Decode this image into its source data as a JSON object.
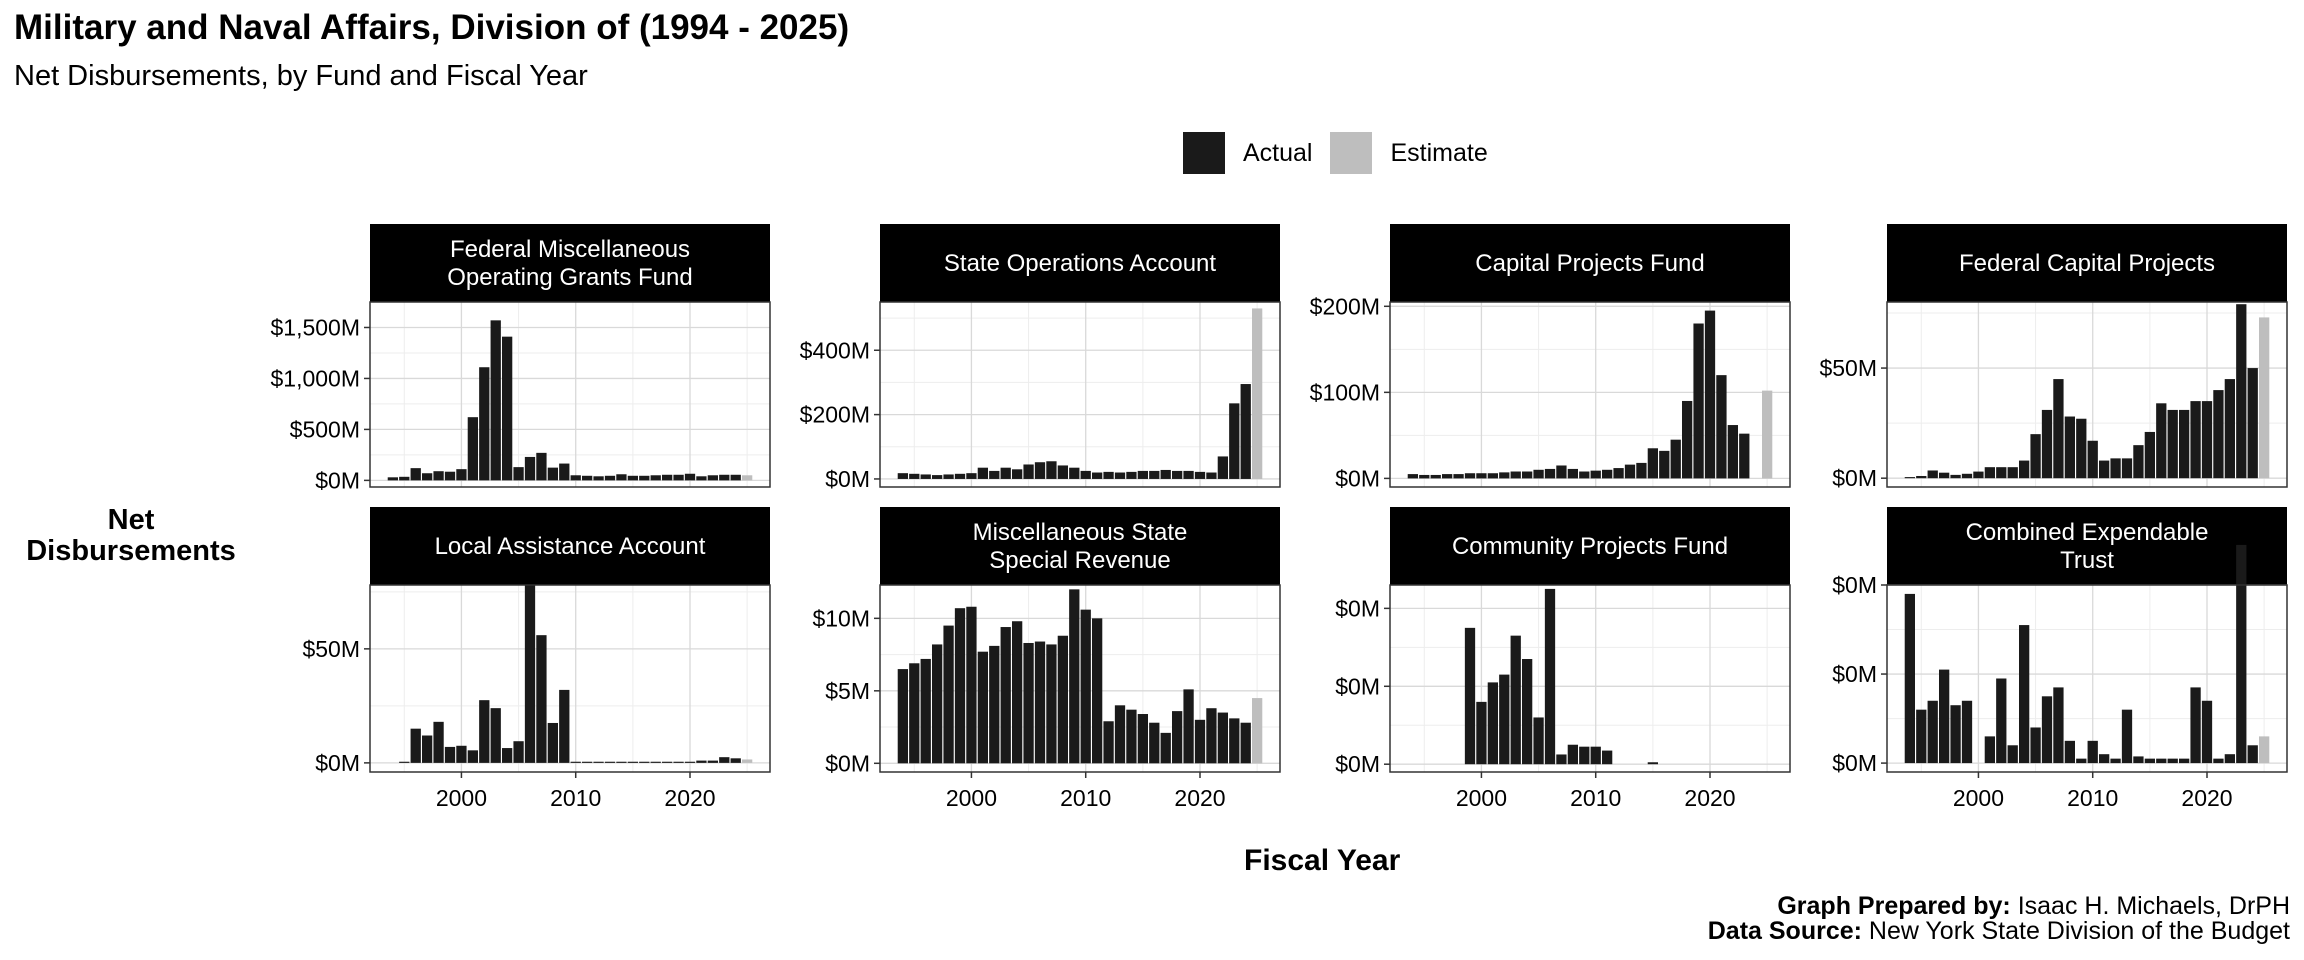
{
  "title": "Military and Naval Affairs, Division of (1994 - 2025)",
  "subtitle": "Net Disbursements, by Fund and Fiscal Year",
  "y_axis_title": "Net Disbursements",
  "x_axis_title": "Fiscal Year",
  "caption": {
    "prepared_label": "Graph Prepared by:",
    "prepared_value": "Isaac H. Michaels, DrPH",
    "source_label": "Data Source:",
    "source_value": "New York State Division of the Budget"
  },
  "legend": {
    "actual_label": "Actual",
    "estimate_label": "Estimate"
  },
  "colors": {
    "actual": "#1a1a1a",
    "estimate": "#bebebe",
    "strip": "#000000",
    "grid_major": "#d9d9d9",
    "grid_minor": "#ededed"
  },
  "chart_data": {
    "type": "bar",
    "units": "millions of dollars",
    "x": [
      1994,
      1995,
      1996,
      1997,
      1998,
      1999,
      2000,
      2001,
      2002,
      2003,
      2004,
      2005,
      2006,
      2007,
      2008,
      2009,
      2010,
      2011,
      2012,
      2013,
      2014,
      2015,
      2016,
      2017,
      2018,
      2019,
      2020,
      2021,
      2022,
      2023,
      2024,
      2025
    ],
    "estimate_years": [
      2025
    ],
    "xlim": [
      1992,
      2027
    ],
    "x_ticks": [
      2000,
      2010,
      2020
    ],
    "x_tick_labels": [
      "2000",
      "2010",
      "2020"
    ],
    "panels": [
      {
        "title": [
          "Federal Miscellaneous",
          "Operating Grants Fund"
        ],
        "ylim": [
          -65,
          1750
        ],
        "y_ticks": [
          0,
          500,
          1000,
          1500
        ],
        "y_tick_labels": [
          "$0M",
          "$500M",
          "$1,000M",
          "$1,500M"
        ],
        "values": [
          30,
          35,
          120,
          70,
          90,
          85,
          110,
          620,
          1110,
          1570,
          1410,
          130,
          230,
          270,
          125,
          165,
          50,
          45,
          40,
          45,
          60,
          45,
          45,
          50,
          55,
          55,
          65,
          40,
          50,
          55,
          55,
          50
        ]
      },
      {
        "title": [
          "State Operations Account"
        ],
        "ylim": [
          -25,
          550
        ],
        "y_ticks": [
          0,
          200,
          400
        ],
        "y_tick_labels": [
          "$0M",
          "$200M",
          "$400M"
        ],
        "values": [
          18,
          16,
          14,
          12,
          14,
          16,
          18,
          35,
          25,
          35,
          30,
          45,
          52,
          55,
          42,
          35,
          25,
          20,
          22,
          20,
          22,
          25,
          25,
          28,
          25,
          25,
          22,
          20,
          70,
          235,
          295,
          530
        ]
      },
      {
        "title": [
          "Capital Projects Fund"
        ],
        "ylim": [
          -10,
          205
        ],
        "y_ticks": [
          0,
          100,
          200
        ],
        "y_tick_labels": [
          "$0M",
          "$100M",
          "$200M"
        ],
        "values": [
          5,
          4,
          4,
          5,
          5,
          6,
          6,
          6,
          7,
          8,
          8,
          10,
          11,
          15,
          11,
          8,
          9,
          10,
          12,
          16,
          18,
          35,
          32,
          45,
          90,
          180,
          195,
          120,
          62,
          52,
          0,
          102
        ]
      },
      {
        "title": [
          "Federal Capital Projects"
        ],
        "ylim": [
          -4,
          80
        ],
        "y_ticks": [
          0,
          50
        ],
        "y_tick_labels": [
          "$0M",
          "$50M"
        ],
        "values": [
          0.5,
          1,
          3.5,
          2.5,
          1.5,
          2,
          3,
          5,
          5,
          5,
          8,
          20,
          31,
          45,
          28,
          27,
          17,
          8,
          9,
          9,
          15,
          21,
          34,
          31,
          31,
          35,
          35,
          40,
          45,
          79,
          50,
          73
        ]
      },
      {
        "title": [
          "Local Assistance Account"
        ],
        "ylim": [
          -4,
          78
        ],
        "y_ticks": [
          0,
          50
        ],
        "y_tick_labels": [
          "$0M",
          "$50M"
        ],
        "values": [
          0,
          0.5,
          15,
          12,
          18,
          7,
          7.5,
          5.5,
          27.5,
          24,
          6.5,
          9.5,
          78,
          56,
          17.5,
          32,
          0.5,
          0.5,
          0.5,
          0.5,
          0.5,
          0.5,
          0.5,
          0.5,
          0.5,
          0.5,
          0.5,
          1,
          1,
          2.5,
          2,
          1.5
        ]
      },
      {
        "title": [
          "Miscellaneous State",
          "Special Revenue"
        ],
        "ylim": [
          -0.6,
          12.3
        ],
        "y_ticks": [
          0,
          5,
          10
        ],
        "y_tick_labels": [
          "$0M",
          "$5M",
          "$10M"
        ],
        "values": [
          6.5,
          6.9,
          7.2,
          8.2,
          9.5,
          10.7,
          10.8,
          7.7,
          8.1,
          9.4,
          9.8,
          8.3,
          8.4,
          8.2,
          8.8,
          12,
          10.6,
          10.0,
          2.9,
          4.0,
          3.7,
          3.4,
          2.8,
          2.1,
          3.6,
          5.1,
          3.0,
          3.8,
          3.5,
          3.1,
          2.8,
          4.5
        ]
      },
      {
        "title": [
          "Community Projects Fund"
        ],
        "ylim": [
          -0.02,
          0.46
        ],
        "y_ticks": [
          0,
          0.2,
          0.4
        ],
        "y_tick_labels": [
          "$0M",
          "$0M",
          "$0M"
        ],
        "values": [
          0,
          0,
          0,
          0,
          0,
          0.35,
          0.16,
          0.21,
          0.23,
          0.33,
          0.27,
          0.12,
          0.45,
          0.025,
          0.05,
          0.045,
          0.045,
          0.035,
          0,
          0,
          0,
          0.005,
          0,
          0,
          0,
          0,
          0,
          0,
          0,
          0,
          0,
          0
        ]
      },
      {
        "title": [
          "Combined Expendable",
          "Trust"
        ],
        "ylim": [
          -0.02,
          0.4
        ],
        "y_ticks": [
          0,
          0.2,
          0.4
        ],
        "y_tick_labels": [
          "$0M",
          "$0M",
          "$0M"
        ],
        "values": [
          0.38,
          0.12,
          0.14,
          0.21,
          0.13,
          0.14,
          0,
          0.06,
          0.19,
          0.04,
          0.31,
          0.08,
          0.15,
          0.17,
          0.05,
          0.01,
          0.05,
          0.02,
          0.01,
          0.12,
          0.015,
          0.01,
          0.01,
          0.01,
          0.01,
          0.17,
          0.14,
          0.01,
          0.02,
          0.49,
          0.04,
          0.06
        ]
      }
    ]
  }
}
